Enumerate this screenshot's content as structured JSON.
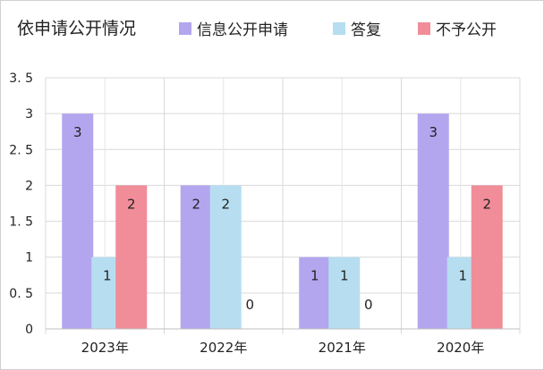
{
  "chart_data": {
    "type": "bar",
    "title": "依申请公开情况",
    "categories": [
      "2023年",
      "2022年",
      "2021年",
      "2020年"
    ],
    "series": [
      {
        "name": "信息公开申请",
        "color": "#b3a6ef",
        "values": [
          3,
          2,
          1,
          3
        ]
      },
      {
        "name": "答复",
        "color": "#b6def0",
        "values": [
          1,
          2,
          1,
          1
        ]
      },
      {
        "name": "不予公开",
        "color": "#f08d99",
        "values": [
          2,
          0,
          0,
          2
        ]
      }
    ],
    "ylim": [
      0,
      3.5
    ],
    "yticks": [
      "0",
      "0. 5",
      "1",
      "1. 5",
      "2",
      "2. 5",
      "3",
      "3. 5"
    ],
    "grid": true,
    "legend": "top"
  }
}
